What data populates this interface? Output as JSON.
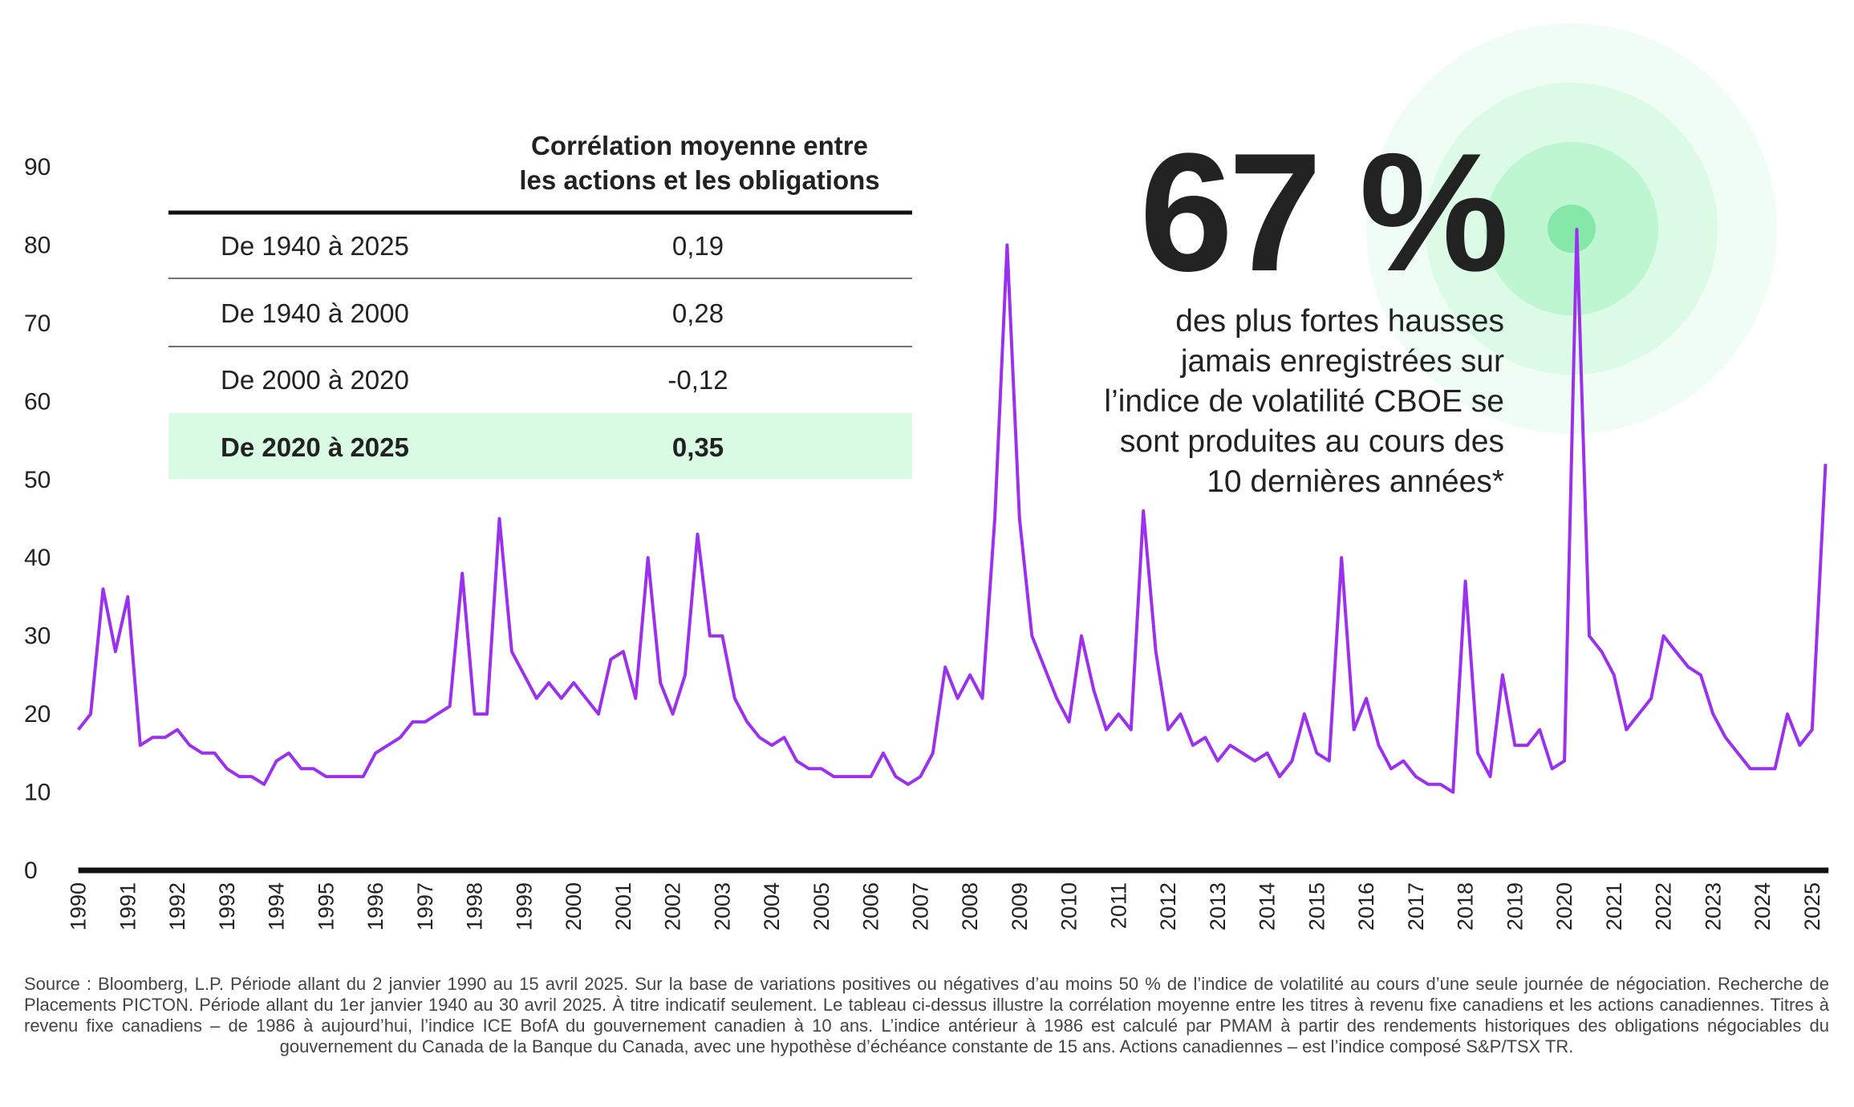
{
  "chart_data": {
    "type": "line",
    "x": [
      1990,
      1990.25,
      1990.5,
      1990.75,
      1991,
      1991.25,
      1991.5,
      1991.75,
      1992,
      1992.25,
      1992.5,
      1992.75,
      1993,
      1993.25,
      1993.5,
      1993.75,
      1994,
      1994.25,
      1994.5,
      1994.75,
      1995,
      1995.25,
      1995.5,
      1995.75,
      1996,
      1996.25,
      1996.5,
      1996.75,
      1997,
      1997.25,
      1997.5,
      1997.75,
      1998,
      1998.25,
      1998.5,
      1998.75,
      1999,
      1999.25,
      1999.5,
      1999.75,
      2000,
      2000.25,
      2000.5,
      2000.75,
      2001,
      2001.25,
      2001.5,
      2001.75,
      2002,
      2002.25,
      2002.5,
      2002.75,
      2003,
      2003.25,
      2003.5,
      2003.75,
      2004,
      2004.25,
      2004.5,
      2004.75,
      2005,
      2005.25,
      2005.5,
      2005.75,
      2006,
      2006.25,
      2006.5,
      2006.75,
      2007,
      2007.25,
      2007.5,
      2007.75,
      2008,
      2008.25,
      2008.5,
      2008.75,
      2009,
      2009.25,
      2009.5,
      2009.75,
      2010,
      2010.25,
      2010.5,
      2010.75,
      2011,
      2011.25,
      2011.5,
      2011.75,
      2012,
      2012.25,
      2012.5,
      2012.75,
      2013,
      2013.25,
      2013.5,
      2013.75,
      2014,
      2014.25,
      2014.5,
      2014.75,
      2015,
      2015.25,
      2015.5,
      2015.75,
      2016,
      2016.25,
      2016.5,
      2016.75,
      2017,
      2017.25,
      2017.5,
      2017.75,
      2018,
      2018.25,
      2018.5,
      2018.75,
      2019,
      2019.25,
      2019.5,
      2019.75,
      2020,
      2020.25,
      2020.5,
      2020.75,
      2021,
      2021.25,
      2021.5,
      2021.75,
      2022,
      2022.25,
      2022.5,
      2022.75,
      2023,
      2023.25,
      2023.5,
      2023.75,
      2024,
      2024.25,
      2024.5,
      2024.75,
      2025,
      2025.27
    ],
    "values": [
      18,
      20,
      36,
      28,
      35,
      16,
      17,
      17,
      18,
      16,
      15,
      15,
      13,
      12,
      12,
      11,
      14,
      15,
      13,
      13,
      12,
      12,
      12,
      12,
      15,
      16,
      17,
      19,
      19,
      20,
      21,
      38,
      20,
      20,
      45,
      28,
      25,
      22,
      24,
      22,
      24,
      22,
      20,
      27,
      28,
      22,
      40,
      24,
      20,
      25,
      43,
      30,
      30,
      22,
      19,
      17,
      16,
      17,
      14,
      13,
      13,
      12,
      12,
      12,
      12,
      15,
      12,
      11,
      12,
      15,
      26,
      22,
      25,
      22,
      45,
      80,
      45,
      30,
      26,
      22,
      19,
      30,
      23,
      18,
      20,
      18,
      46,
      28,
      18,
      20,
      16,
      17,
      14,
      16,
      15,
      14,
      15,
      12,
      14,
      20,
      15,
      14,
      40,
      18,
      22,
      16,
      13,
      14,
      12,
      11,
      11,
      10,
      37,
      15,
      12,
      25,
      16,
      16,
      18,
      13,
      14,
      82,
      30,
      28,
      25,
      18,
      20,
      22,
      30,
      28,
      26,
      25,
      20,
      17,
      15,
      13,
      13,
      13,
      20,
      16,
      18,
      52
    ],
    "color": "#9b30ef",
    "xlim": [
      1990,
      2025.33
    ],
    "xticks": [
      1990,
      1991,
      1992,
      1993,
      1994,
      1995,
      1996,
      1997,
      1998,
      1999,
      2000,
      2001,
      2002,
      2003,
      2004,
      2005,
      2006,
      2007,
      2008,
      2009,
      2010,
      2011,
      2012,
      2013,
      2014,
      2015,
      2016,
      2017,
      2018,
      2019,
      2020,
      2021,
      2022,
      2023,
      2024,
      2025
    ],
    "ylim": [
      0,
      90
    ],
    "yticks": [
      0,
      10,
      20,
      30,
      40,
      50,
      60,
      70,
      80,
      90
    ],
    "headline": "67 %",
    "annotation_lines": [
      "des plus fortes hausses",
      "jamais enregistrées sur",
      "l’indice de volatilité CBOE se",
      "sont produites au cours des",
      "10 dernières années*"
    ]
  },
  "table": {
    "header": [
      "Corrélation moyenne entre",
      "les actions et les obligations"
    ],
    "rows": [
      [
        "De 1940 à 2025",
        "0,19"
      ],
      [
        "De 1940 à 2000",
        "0,28"
      ],
      [
        "De 2000 à 2020",
        "-0,12"
      ],
      [
        "De 2020 à 2025",
        "0,35"
      ]
    ],
    "highlight_row": 3
  },
  "source": "Source : Bloomberg, L.P. Période allant du 2 janvier 1990 au 15 avril 2025. Sur la base de variations positives ou négatives d’au moins 50 % de l’indice de volatilité au cours d’une seule journée de négociation. Recherche de Placements PICTON. Période allant du 1er janvier 1940 au 30 avril 2025. À titre indicatif seulement. Le tableau ci-dessus illustre la corrélation moyenne entre les titres à revenu fixe canadiens et les actions canadiennes. Titres à revenu fixe canadiens – de 1986 à aujourd’hui, l’indice ICE BofA du gouvernement canadien à 10 ans. L’indice antérieur à 1986 est calculé par PMAM à partir des rendements historiques des obligations négociables du gouvernement du Canada de la Banque du Canada, avec une hypothèse d’échéance constante de 15 ans. Actions canadiennes – est l’indice composé S&P/TSX TR."
}
